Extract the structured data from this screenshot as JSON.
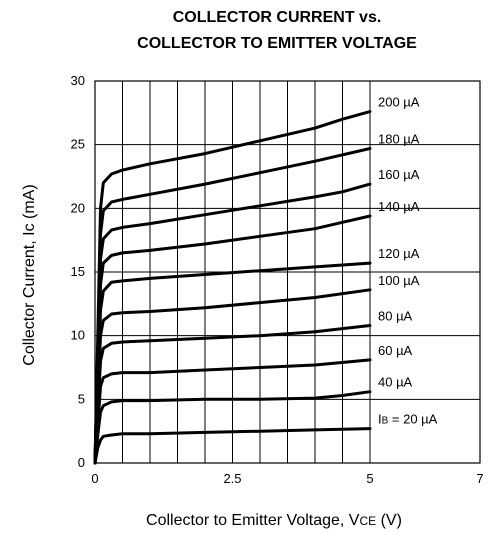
{
  "chart_data": {
    "type": "line",
    "title_line1": "COLLECTOR CURRENT vs.",
    "title_line2": "COLLECTOR TO EMITTER VOLTAGE",
    "xlabel_main": "Collector to Emitter Voltage, V",
    "xlabel_sub": "CE",
    "xlabel_unit": " (V)",
    "ylabel": "Collector Current, Ic (mA)",
    "xlim": [
      0,
      7
    ],
    "ylim": [
      0,
      30
    ],
    "x_ticks": [
      {
        "value": 0,
        "label": "0"
      },
      {
        "value": 2.5,
        "label": "2.5"
      },
      {
        "value": 5,
        "label": "5"
      },
      {
        "value": 7,
        "label": "7"
      }
    ],
    "y_ticks": [
      {
        "value": 0,
        "label": "0"
      },
      {
        "value": 5,
        "label": "5"
      },
      {
        "value": 10,
        "label": "10"
      },
      {
        "value": 15,
        "label": "15"
      },
      {
        "value": 20,
        "label": "20"
      },
      {
        "value": 25,
        "label": "25"
      },
      {
        "value": 30,
        "label": "30"
      }
    ],
    "grid_x": [
      0.5,
      1,
      1.5,
      2,
      2.5,
      3,
      3.5,
      4,
      4.5,
      5
    ],
    "grid_y": [
      5,
      10,
      15,
      20,
      25
    ],
    "series": [
      {
        "label": "200 µA",
        "points": [
          [
            0,
            0
          ],
          [
            0.05,
            10
          ],
          [
            0.1,
            20
          ],
          [
            0.15,
            22
          ],
          [
            0.3,
            22.7
          ],
          [
            0.5,
            23
          ],
          [
            1,
            23.5
          ],
          [
            2,
            24.3
          ],
          [
            3,
            25.3
          ],
          [
            4,
            26.3
          ],
          [
            4.5,
            27
          ],
          [
            5,
            27.6
          ]
        ]
      },
      {
        "label": "180 µA",
        "points": [
          [
            0,
            0
          ],
          [
            0.05,
            9
          ],
          [
            0.1,
            18
          ],
          [
            0.15,
            19.8
          ],
          [
            0.3,
            20.5
          ],
          [
            0.5,
            20.7
          ],
          [
            1,
            21.1
          ],
          [
            2,
            21.9
          ],
          [
            3,
            22.8
          ],
          [
            4,
            23.7
          ],
          [
            5,
            24.7
          ]
        ]
      },
      {
        "label": "160 µA",
        "points": [
          [
            0,
            0
          ],
          [
            0.05,
            8
          ],
          [
            0.1,
            16
          ],
          [
            0.15,
            17.6
          ],
          [
            0.3,
            18.3
          ],
          [
            0.5,
            18.5
          ],
          [
            1,
            18.8
          ],
          [
            2,
            19.5
          ],
          [
            3,
            20.2
          ],
          [
            4,
            20.9
          ],
          [
            4.5,
            21.3
          ],
          [
            5,
            21.9
          ]
        ]
      },
      {
        "label": "140 µA",
        "points": [
          [
            0,
            0
          ],
          [
            0.05,
            7
          ],
          [
            0.1,
            14
          ],
          [
            0.15,
            15.7
          ],
          [
            0.3,
            16.3
          ],
          [
            0.5,
            16.5
          ],
          [
            1,
            16.7
          ],
          [
            2,
            17.2
          ],
          [
            3,
            17.8
          ],
          [
            4,
            18.4
          ],
          [
            4.5,
            18.9
          ],
          [
            5,
            19.4
          ]
        ]
      },
      {
        "label": "120 µA",
        "points": [
          [
            0,
            0
          ],
          [
            0.05,
            6
          ],
          [
            0.1,
            12
          ],
          [
            0.15,
            13.5
          ],
          [
            0.3,
            14.2
          ],
          [
            0.5,
            14.3
          ],
          [
            1,
            14.5
          ],
          [
            2,
            14.8
          ],
          [
            3,
            15.1
          ],
          [
            4,
            15.4
          ],
          [
            5,
            15.7
          ]
        ]
      },
      {
        "label": "100 µA",
        "points": [
          [
            0,
            0
          ],
          [
            0.05,
            5
          ],
          [
            0.1,
            10
          ],
          [
            0.15,
            11.2
          ],
          [
            0.3,
            11.7
          ],
          [
            0.5,
            11.8
          ],
          [
            1,
            11.9
          ],
          [
            2,
            12.2
          ],
          [
            3,
            12.6
          ],
          [
            4,
            13
          ],
          [
            5,
            13.6
          ]
        ]
      },
      {
        "label": "80 µA",
        "points": [
          [
            0,
            0
          ],
          [
            0.05,
            4
          ],
          [
            0.1,
            8
          ],
          [
            0.15,
            9
          ],
          [
            0.3,
            9.4
          ],
          [
            0.5,
            9.5
          ],
          [
            1,
            9.6
          ],
          [
            2,
            9.8
          ],
          [
            3,
            10
          ],
          [
            4,
            10.3
          ],
          [
            5,
            10.8
          ]
        ]
      },
      {
        "label": "60 µA",
        "points": [
          [
            0,
            0
          ],
          [
            0.05,
            3
          ],
          [
            0.1,
            6
          ],
          [
            0.15,
            6.7
          ],
          [
            0.3,
            7
          ],
          [
            0.5,
            7.1
          ],
          [
            1,
            7.1
          ],
          [
            2,
            7.3
          ],
          [
            3,
            7.5
          ],
          [
            4,
            7.7
          ],
          [
            5,
            8.1
          ]
        ]
      },
      {
        "label": "40 µA",
        "points": [
          [
            0,
            0
          ],
          [
            0.05,
            2.2
          ],
          [
            0.1,
            4
          ],
          [
            0.15,
            4.5
          ],
          [
            0.3,
            4.8
          ],
          [
            0.5,
            4.9
          ],
          [
            1,
            4.9
          ],
          [
            2,
            5
          ],
          [
            3,
            5
          ],
          [
            4,
            5.1
          ],
          [
            4.5,
            5.3
          ],
          [
            5,
            5.6
          ]
        ]
      },
      {
        "label_pre": "I",
        "label_sub": "B",
        "label_post": " = 20 µA",
        "points": [
          [
            0,
            0
          ],
          [
            0.05,
            1.2
          ],
          [
            0.1,
            1.8
          ],
          [
            0.15,
            2.1
          ],
          [
            0.3,
            2.2
          ],
          [
            0.5,
            2.3
          ],
          [
            1,
            2.3
          ],
          [
            2,
            2.4
          ],
          [
            3,
            2.5
          ],
          [
            4,
            2.6
          ],
          [
            5,
            2.7
          ]
        ]
      }
    ]
  }
}
